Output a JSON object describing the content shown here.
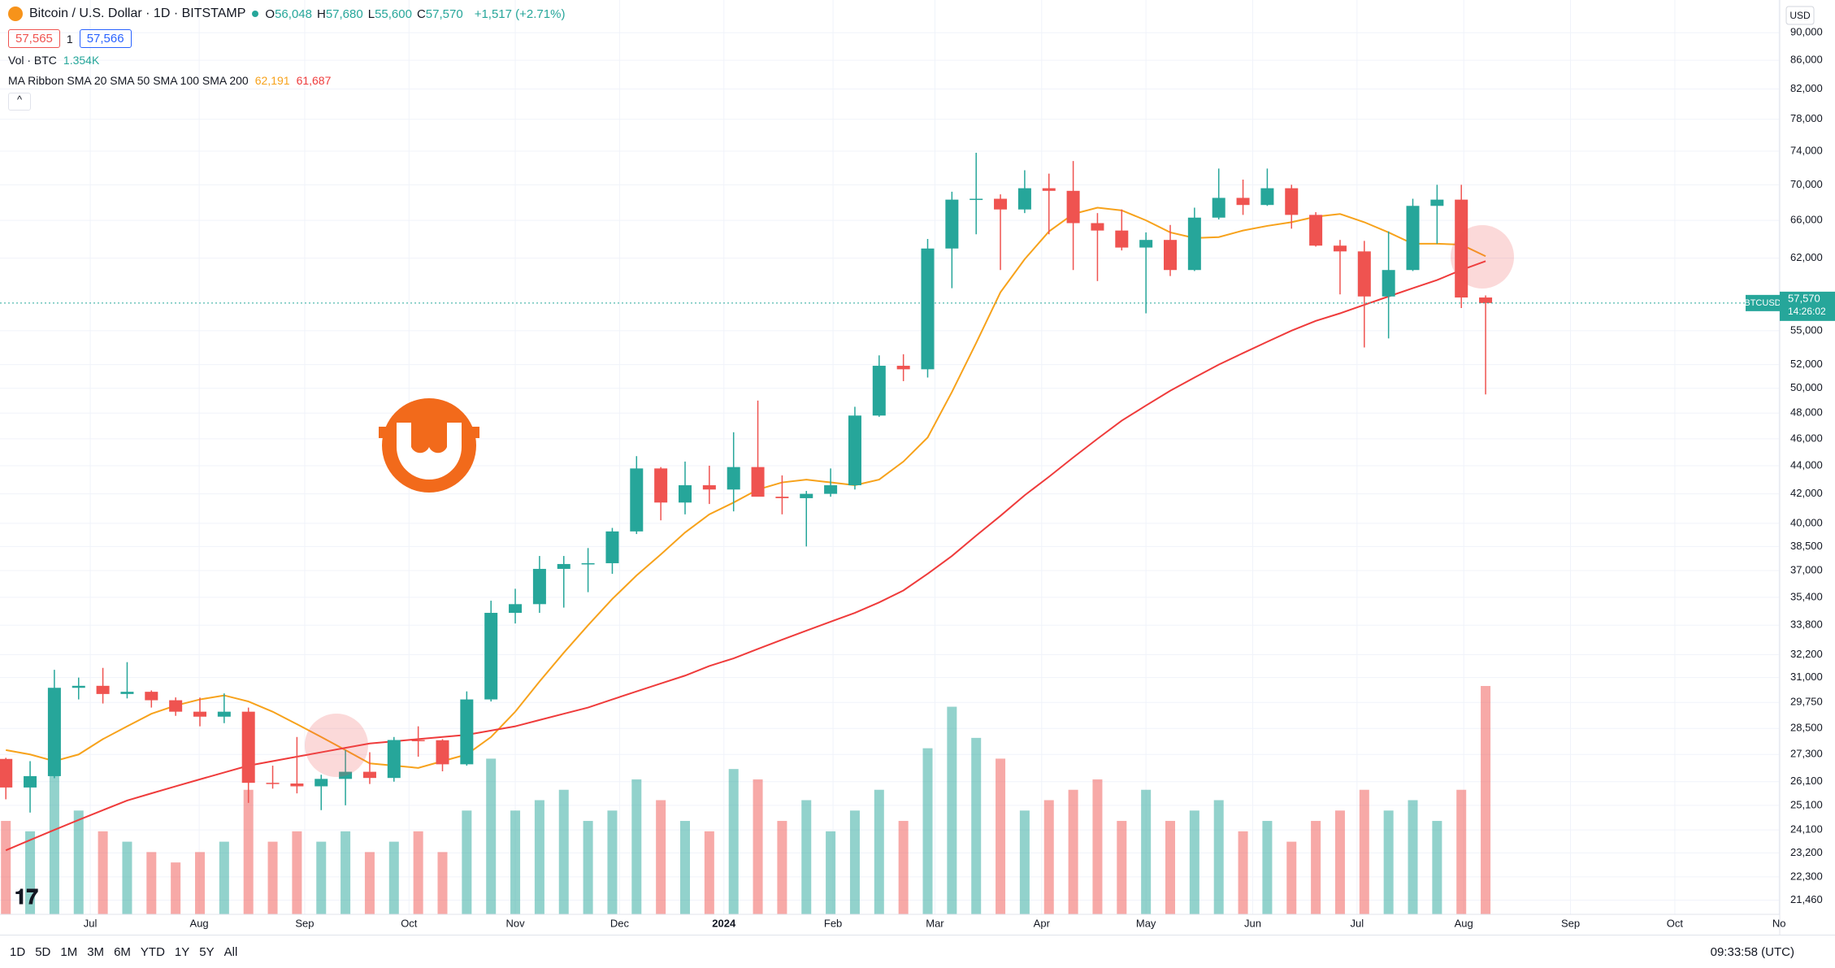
{
  "header": {
    "symbol": "Bitcoin / U.S. Dollar · 1D · BITSTAMP",
    "ohlc": [
      {
        "key": "O",
        "value": "56,048"
      },
      {
        "key": "H",
        "value": "57,680"
      },
      {
        "key": "L",
        "value": "55,600"
      },
      {
        "key": "C",
        "value": "57,570"
      }
    ],
    "change": "+1,517 (+2.71%)",
    "sell": "57,565",
    "spread": "1",
    "buy": "57,566",
    "volume_label": "Vol · BTC",
    "volume_value": "1.354K",
    "ribbon_label": "MA Ribbon SMA 20 SMA 50 SMA 100 SMA 200",
    "ribbon_values": [
      "62,191",
      "61,687"
    ]
  },
  "price_axis": {
    "currency": "USD",
    "tag_symbol": "BTCUSD",
    "tag_price": "57,570",
    "tag_countdown": "14:26:02"
  },
  "toolbar": {
    "ranges": [
      "1D",
      "5D",
      "1M",
      "3M",
      "6M",
      "YTD",
      "1Y",
      "5Y",
      "All"
    ],
    "clock": "09:33:58 (UTC)"
  },
  "chart_data": {
    "type": "candlestick",
    "log_scale": true,
    "grid": true,
    "up_color": "#26a69a",
    "down_color": "#ef5350",
    "ylim": [
      20960,
      95000
    ],
    "yticks": [
      {
        "value": 90000,
        "label": "90,000"
      },
      {
        "value": 86000,
        "label": "86,000"
      },
      {
        "value": 82000,
        "label": "82,000"
      },
      {
        "value": 78000,
        "label": "78,000"
      },
      {
        "value": 74000,
        "label": "74,000"
      },
      {
        "value": 70000,
        "label": "70,000"
      },
      {
        "value": 66000,
        "label": "66,000"
      },
      {
        "value": 62000,
        "label": "62,000"
      },
      {
        "value": 55000,
        "label": "55,000"
      },
      {
        "value": 52000,
        "label": "52,000"
      },
      {
        "value": 50000,
        "label": "50,000"
      },
      {
        "value": 48000,
        "label": "48,000"
      },
      {
        "value": 46000,
        "label": "46,000"
      },
      {
        "value": 44000,
        "label": "44,000"
      },
      {
        "value": 42000,
        "label": "42,000"
      },
      {
        "value": 40000,
        "label": "40,000"
      },
      {
        "value": 38500,
        "label": "38,500"
      },
      {
        "value": 37000,
        "label": "37,000"
      },
      {
        "value": 35400,
        "label": "35,400"
      },
      {
        "value": 33800,
        "label": "33,800"
      },
      {
        "value": 32200,
        "label": "32,200"
      },
      {
        "value": 31000,
        "label": "31,000"
      },
      {
        "value": 29750,
        "label": "29,750"
      },
      {
        "value": 28500,
        "label": "28,500"
      },
      {
        "value": 27300,
        "label": "27,300"
      },
      {
        "value": 26100,
        "label": "26,100"
      },
      {
        "value": 25100,
        "label": "25,100"
      },
      {
        "value": 24100,
        "label": "24,100"
      },
      {
        "value": 23200,
        "label": "23,200"
      },
      {
        "value": 22300,
        "label": "22,300"
      },
      {
        "value": 21460,
        "label": "21,460"
      }
    ],
    "xticks": [
      {
        "value": 3.48,
        "label": "Jul"
      },
      {
        "value": 7.97,
        "label": "Aug"
      },
      {
        "value": 12.32,
        "label": "Sep"
      },
      {
        "value": 16.62,
        "label": "Oct"
      },
      {
        "value": 21.0,
        "label": "Nov"
      },
      {
        "value": 25.3,
        "label": "Dec"
      },
      {
        "value": 29.6,
        "label": "2024"
      },
      {
        "value": 34.1,
        "label": "Feb"
      },
      {
        "value": 38.3,
        "label": "Mar"
      },
      {
        "value": 42.7,
        "label": "Apr"
      },
      {
        "value": 47.0,
        "label": "May"
      },
      {
        "value": 51.4,
        "label": "Jun"
      },
      {
        "value": 55.7,
        "label": "Jul"
      },
      {
        "value": 60.1,
        "label": "Aug"
      },
      {
        "value": 64.5,
        "label": "Sep"
      },
      {
        "value": 68.8,
        "label": "Oct"
      },
      {
        "value": 73.1,
        "label": "No"
      }
    ],
    "ohlc": [
      [
        27100,
        27150,
        25350,
        25850
      ],
      [
        25850,
        27000,
        24800,
        26340
      ],
      [
        26340,
        31400,
        26250,
        30480
      ],
      [
        30480,
        31000,
        29900,
        30580
      ],
      [
        30580,
        31500,
        29700,
        30170
      ],
      [
        30170,
        31800,
        29950,
        30280
      ],
      [
        30280,
        30350,
        29500,
        29860
      ],
      [
        29860,
        30000,
        29100,
        29300
      ],
      [
        29300,
        29990,
        28600,
        29060
      ],
      [
        29060,
        30200,
        28750,
        29300
      ],
      [
        29300,
        29500,
        25200,
        26050
      ],
      [
        26050,
        26800,
        25800,
        26020
      ],
      [
        26020,
        28100,
        25600,
        25900
      ],
      [
        25900,
        26400,
        24900,
        26220
      ],
      [
        26220,
        27500,
        25100,
        26530
      ],
      [
        26530,
        27400,
        26000,
        26260
      ],
      [
        26260,
        28100,
        26100,
        27960
      ],
      [
        27960,
        28600,
        27200,
        27950
      ],
      [
        27950,
        28000,
        26550,
        26860
      ],
      [
        26860,
        30300,
        26800,
        29900
      ],
      [
        29900,
        35200,
        29800,
        34500
      ],
      [
        34500,
        35900,
        33900,
        35000
      ],
      [
        35000,
        37900,
        34500,
        37100
      ],
      [
        37100,
        37900,
        34800,
        37400
      ],
      [
        37400,
        38400,
        35700,
        37450
      ],
      [
        37450,
        39700,
        36800,
        39470
      ],
      [
        39470,
        44700,
        39300,
        43800
      ],
      [
        43800,
        43900,
        40200,
        41400
      ],
      [
        41400,
        44300,
        40600,
        42600
      ],
      [
        42600,
        44000,
        41300,
        42300
      ],
      [
        42300,
        46500,
        40800,
        43900
      ],
      [
        43900,
        49000,
        42200,
        41800
      ],
      [
        41800,
        43300,
        40600,
        41700
      ],
      [
        41700,
        42200,
        38500,
        42000
      ],
      [
        42000,
        43800,
        41800,
        42600
      ],
      [
        42600,
        48500,
        42300,
        47800
      ],
      [
        47800,
        52800,
        47700,
        51900
      ],
      [
        51900,
        52900,
        50600,
        51600
      ],
      [
        51600,
        64000,
        50900,
        63000
      ],
      [
        63000,
        69200,
        59000,
        68300
      ],
      [
        68300,
        73800,
        64500,
        68400
      ],
      [
        68400,
        68900,
        60800,
        67200
      ],
      [
        67200,
        71700,
        66800,
        69600
      ],
      [
        69600,
        71300,
        64500,
        69300
      ],
      [
        69300,
        72800,
        60800,
        65700
      ],
      [
        65700,
        66800,
        59700,
        64900
      ],
      [
        64900,
        67200,
        62800,
        63100
      ],
      [
        63100,
        64700,
        56600,
        63900
      ],
      [
        63900,
        65500,
        60200,
        60800
      ],
      [
        60800,
        67400,
        60700,
        66300
      ],
      [
        66300,
        71900,
        66100,
        68500
      ],
      [
        68500,
        70600,
        66600,
        67700
      ],
      [
        67700,
        71900,
        67600,
        69600
      ],
      [
        69600,
        70000,
        65100,
        66600
      ],
      [
        66600,
        66900,
        63200,
        63300
      ],
      [
        63300,
        63900,
        58400,
        62700
      ],
      [
        62700,
        63800,
        53500,
        58200
      ],
      [
        58200,
        64800,
        54300,
        60800
      ],
      [
        60800,
        68400,
        60700,
        67600
      ],
      [
        67600,
        70000,
        63500,
        68300
      ],
      [
        68300,
        70000,
        57100,
        58100
      ],
      [
        58100,
        58300,
        49500,
        57570
      ]
    ],
    "volume": [
      9000,
      8000,
      14000,
      10000,
      8000,
      7000,
      6000,
      5000,
      6000,
      7000,
      12000,
      7000,
      8000,
      7000,
      8000,
      6000,
      7000,
      8000,
      6000,
      10000,
      15000,
      10000,
      11000,
      12000,
      9000,
      10000,
      13000,
      11000,
      9000,
      8000,
      14000,
      13000,
      9000,
      11000,
      8000,
      10000,
      12000,
      9000,
      16000,
      20000,
      17000,
      15000,
      10000,
      11000,
      12000,
      13000,
      9000,
      12000,
      9000,
      10000,
      11000,
      8000,
      9000,
      7000,
      9000,
      10000,
      12000,
      10000,
      11000,
      9000,
      12000,
      22000
    ],
    "series": [
      {
        "color": "#f7a21b",
        "values": [
          27500,
          27300,
          27000,
          27300,
          28000,
          28600,
          29200,
          29600,
          29900,
          30100,
          29800,
          29300,
          28700,
          28100,
          27500,
          26900,
          26800,
          26700,
          27000,
          27300,
          28100,
          29300,
          30800,
          32300,
          33800,
          35300,
          36700,
          38000,
          39400,
          40600,
          41400,
          42300,
          42800,
          43000,
          42800,
          42600,
          43000,
          44300,
          46100,
          49700,
          53900,
          58600,
          61900,
          64800,
          66700,
          67400,
          67100,
          66000,
          64700,
          64100,
          64200,
          64900,
          65400,
          65800,
          66400,
          66700,
          65800,
          64700,
          63500,
          63500,
          63400,
          62200
        ]
      },
      {
        "color": "#ef3b3b",
        "values": [
          23300,
          23700,
          24100,
          24500,
          24900,
          25300,
          25600,
          25900,
          26200,
          26500,
          26800,
          27000,
          27200,
          27400,
          27600,
          27800,
          27900,
          28000,
          28100,
          28200,
          28400,
          28600,
          28900,
          29200,
          29500,
          29900,
          30300,
          30700,
          31100,
          31600,
          32000,
          32500,
          33000,
          33500,
          34000,
          34500,
          35100,
          35800,
          36800,
          37900,
          39200,
          40500,
          41900,
          43200,
          44600,
          46000,
          47400,
          48600,
          49800,
          50900,
          52000,
          53000,
          54000,
          55000,
          55900,
          56600,
          57400,
          58200,
          59000,
          59800,
          60800,
          61700
        ]
      }
    ]
  }
}
